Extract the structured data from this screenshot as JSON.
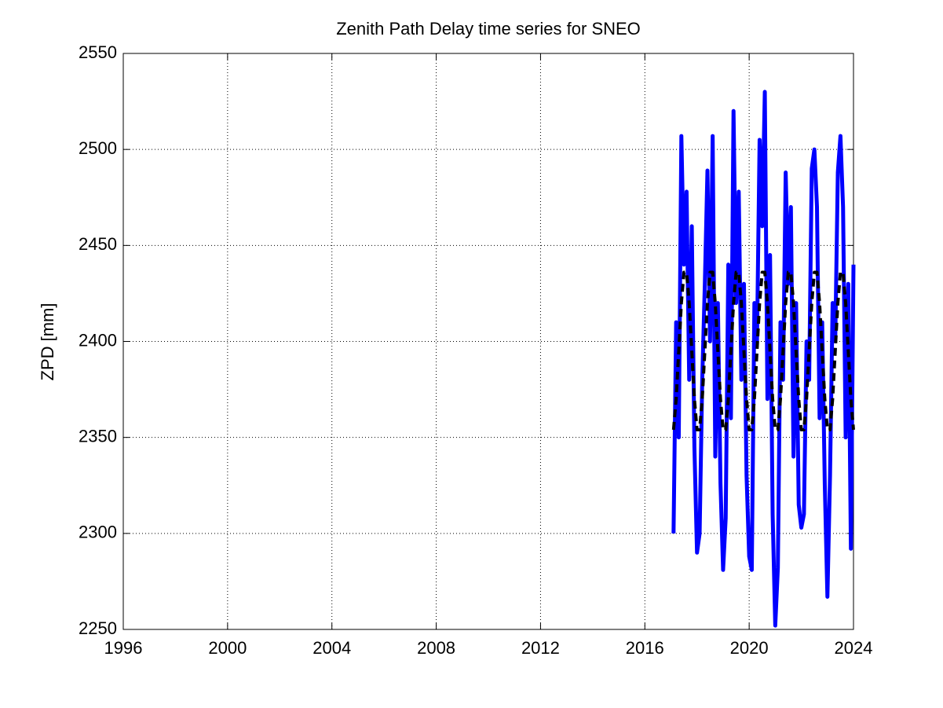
{
  "chart_data": {
    "type": "line",
    "title": "Zenith Path Delay time series for SNEO",
    "ylabel": "ZPD [mm]",
    "x": [
      2017.1,
      2017.2,
      2017.3,
      2017.4,
      2017.5,
      2017.6,
      2017.7,
      2017.8,
      2017.9,
      2018.0,
      2018.1,
      2018.2,
      2018.3,
      2018.4,
      2018.5,
      2018.6,
      2018.7,
      2018.8,
      2018.9,
      2019.0,
      2019.1,
      2019.2,
      2019.3,
      2019.4,
      2019.5,
      2019.6,
      2019.7,
      2019.8,
      2019.9,
      2020.0,
      2020.1,
      2020.2,
      2020.3,
      2020.4,
      2020.5,
      2020.6,
      2020.7,
      2020.8,
      2020.9,
      2021.0,
      2021.1,
      2021.2,
      2021.3,
      2021.4,
      2021.5,
      2021.6,
      2021.7,
      2021.8,
      2021.9,
      2022.0,
      2022.1,
      2022.2,
      2022.3,
      2022.4,
      2022.5,
      2022.6,
      2022.7,
      2022.8,
      2022.9,
      2023.0,
      2023.1,
      2023.2,
      2023.3,
      2023.4,
      2023.5,
      2023.6,
      2023.7,
      2023.8,
      2023.9,
      2024.0
    ],
    "series": [
      {
        "color": "#0000ff",
        "line_style": "solid",
        "width": 5,
        "values": [
          2300,
          2410,
          2350,
          2507,
          2440,
          2478,
          2380,
          2460,
          2345,
          2290,
          2300,
          2380,
          2430,
          2489,
          2400,
          2507,
          2340,
          2420,
          2326,
          2281,
          2308,
          2440,
          2360,
          2520,
          2420,
          2478,
          2380,
          2430,
          2330,
          2288,
          2281,
          2420,
          2400,
          2505,
          2460,
          2530,
          2370,
          2445,
          2310,
          2252,
          2282,
          2410,
          2380,
          2488,
          2430,
          2470,
          2340,
          2420,
          2315,
          2303,
          2310,
          2400,
          2380,
          2490,
          2500,
          2470,
          2360,
          2410,
          2325,
          2267,
          2330,
          2420,
          2400,
          2488,
          2507,
          2470,
          2350,
          2430,
          2292,
          2440
        ]
      },
      {
        "color": "#000000",
        "line_style": "dashed",
        "width": 4,
        "values": [
          2354,
          2370,
          2395,
          2420,
          2436,
          2436,
          2420,
          2395,
          2370,
          2354,
          2354,
          2370,
          2395,
          2420,
          2436,
          2436,
          2420,
          2395,
          2370,
          2354,
          2354,
          2370,
          2395,
          2420,
          2436,
          2436,
          2420,
          2395,
          2370,
          2354,
          2354,
          2370,
          2395,
          2420,
          2436,
          2436,
          2420,
          2395,
          2370,
          2354,
          2354,
          2370,
          2395,
          2420,
          2436,
          2436,
          2420,
          2395,
          2370,
          2354,
          2354,
          2370,
          2395,
          2420,
          2436,
          2436,
          2420,
          2395,
          2370,
          2354,
          2354,
          2370,
          2395,
          2420,
          2436,
          2436,
          2420,
          2395,
          2370,
          2354
        ]
      }
    ],
    "xlim": [
      1996,
      2024
    ],
    "xticks": [
      1996,
      2000,
      2004,
      2008,
      2012,
      2016,
      2020,
      2024
    ],
    "ylim": [
      2250,
      2550
    ],
    "yticks": [
      2250,
      2300,
      2350,
      2400,
      2450,
      2500,
      2550
    ],
    "grid": true
  }
}
